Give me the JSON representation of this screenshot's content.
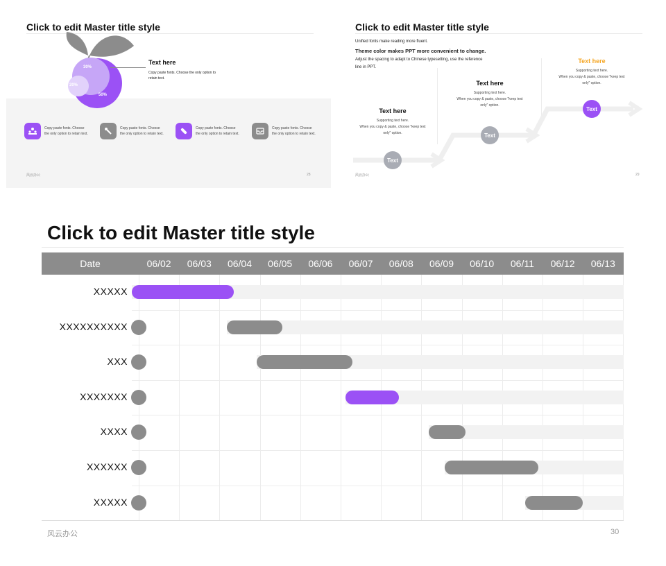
{
  "colors": {
    "accent": "#9b51f5",
    "gray": "#8c8c8c",
    "orange": "#f5a623",
    "light": "#f2f2f2"
  },
  "slide28": {
    "title": "Click to edit Master title style",
    "pct_30": "30%",
    "pct_20": "20%",
    "pct_50": "50%",
    "callout_title": "Text here",
    "callout_body_1": "Copy paste fonts. Choose the only option to",
    "callout_body_2": "retain text.",
    "features": [
      {
        "icon": "crowd-icon",
        "text_1": "Copy paste fonts. Choose",
        "text_2": "the only option to retain text."
      },
      {
        "icon": "tools-icon",
        "text_1": "Copy paste fonts. Choose",
        "text_2": "the only option to retain text."
      },
      {
        "icon": "pill-icon",
        "text_1": "Copy paste fonts. Choose",
        "text_2": "the only option to retain text."
      },
      {
        "icon": "inbox-icon",
        "text_1": "Copy paste fonts. Choose",
        "text_2": "the only option to retain text."
      }
    ],
    "footer_left": "风云办公",
    "footer_right": "28"
  },
  "slide29": {
    "title": "Click to edit Master title style",
    "line_1": "Unified fonts make reading more fluent.",
    "line_2": "Theme color makes PPT more convenient to change.",
    "line_3": "Adjust the spacing to adapt to Chinese typesetting, use the reference",
    "line_4": "line in PPT.",
    "steps": [
      {
        "heading": "Text here",
        "s1": "Supporting text here.",
        "s2": "When you copy & paste, choose \"keep text",
        "s3": "only\" option.",
        "circle": "Text"
      },
      {
        "heading": "Text here",
        "s1": "Supporting text here.",
        "s2": "When you copy & paste, choose \"keep text",
        "s3": "only\" option.",
        "circle": "Text"
      },
      {
        "heading": "Text here",
        "s1": "Supporting text here.",
        "s2": "When you copy & paste, choose \"keep text",
        "s3": "only\" option.",
        "circle": "Text"
      }
    ],
    "footer_left": "风云办公",
    "footer_right": "29"
  },
  "slide30": {
    "title": "Click to edit Master title style",
    "date_header": "Date",
    "dates": [
      "06/02",
      "06/03",
      "06/04",
      "06/05",
      "06/06",
      "06/07",
      "06/08",
      "06/09",
      "06/10",
      "06/11",
      "06/12",
      "06/13"
    ],
    "footer_left": "风云办公",
    "footer_right": "30"
  },
  "chart_data": {
    "type": "gantt",
    "categories": [
      "06/02",
      "06/03",
      "06/04",
      "06/05",
      "06/06",
      "06/07",
      "06/08",
      "06/09",
      "06/10",
      "06/11",
      "06/12",
      "06/13"
    ],
    "tasks": [
      {
        "name": "XXXXX",
        "start": 0.0,
        "end": 2.35,
        "highlight": true
      },
      {
        "name": "XXXXXXXXXX",
        "start": 2.35,
        "end": 3.55,
        "highlight": false
      },
      {
        "name": "XXX",
        "start": 3.1,
        "end": 5.3,
        "highlight": false
      },
      {
        "name": "XXXXXXX",
        "start": 5.3,
        "end": 6.45,
        "highlight": true
      },
      {
        "name": "XXXX",
        "start": 7.35,
        "end": 8.1,
        "highlight": false
      },
      {
        "name": "XXXXXX",
        "start": 7.75,
        "end": 9.9,
        "highlight": false
      },
      {
        "name": "XXXXX",
        "start": 9.75,
        "end": 11.0,
        "highlight": false
      }
    ]
  }
}
